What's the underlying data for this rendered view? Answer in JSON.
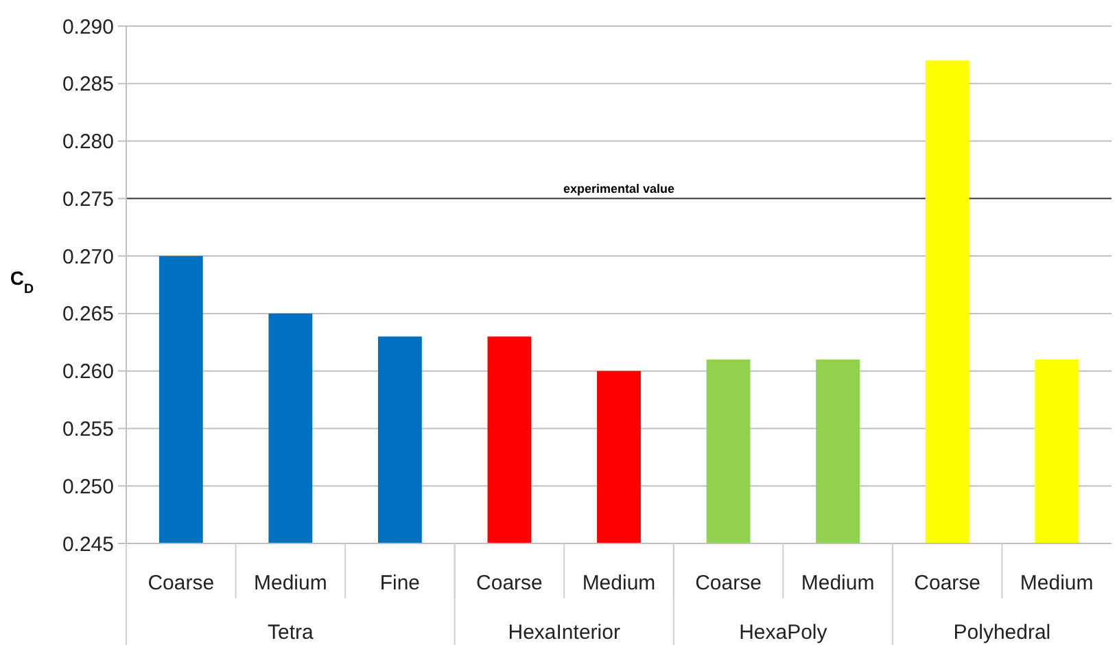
{
  "chart_data": {
    "type": "bar",
    "ylabel": "C$_{D}$",
    "categories": [
      "Coarse",
      "Medium",
      "Fine",
      "Coarse",
      "Medium",
      "Coarse",
      "Medium",
      "Coarse",
      "Medium"
    ],
    "series": [
      {
        "color": "#0070c0",
        "values": [
          0.27,
          0.265,
          0.263,
          null,
          null,
          null,
          null,
          null,
          null
        ]
      },
      {
        "color": "#ff0000",
        "values": [
          null,
          null,
          null,
          0.263,
          0.26,
          null,
          null,
          null,
          null
        ]
      },
      {
        "color": "#92d050",
        "values": [
          null,
          null,
          null,
          null,
          null,
          0.261,
          0.261,
          null,
          null
        ]
      },
      {
        "color": "#ffff00",
        "values": [
          null,
          null,
          null,
          null,
          null,
          null,
          null,
          0.287,
          0.261
        ]
      }
    ],
    "annotations": [
      "Tetra",
      "HexaInterior",
      "HexaPoly",
      "Polyhedral"
    ],
    "ylim": [
      0.245,
      0.29
    ],
    "yticks": [
      {
        "value": 0.245,
        "label": "0.245"
      },
      {
        "value": 0.25,
        "label": "0.250"
      },
      {
        "value": 0.255,
        "label": "0.255"
      },
      {
        "value": 0.26,
        "label": "0.260"
      },
      {
        "value": 0.265,
        "label": "0.265"
      },
      {
        "value": 0.27,
        "label": "0.270"
      },
      {
        "value": 0.275,
        "label": "0.275"
      },
      {
        "value": 0.28,
        "label": "0.280"
      },
      {
        "value": 0.285,
        "label": "0.285"
      },
      {
        "value": 0.29,
        "label": "0.290"
      }
    ],
    "grid": "y",
    "ref_lines": [
      {
        "axis": "y",
        "value": 0.275,
        "label": "experimental value",
        "color": "#404040"
      }
    ]
  }
}
